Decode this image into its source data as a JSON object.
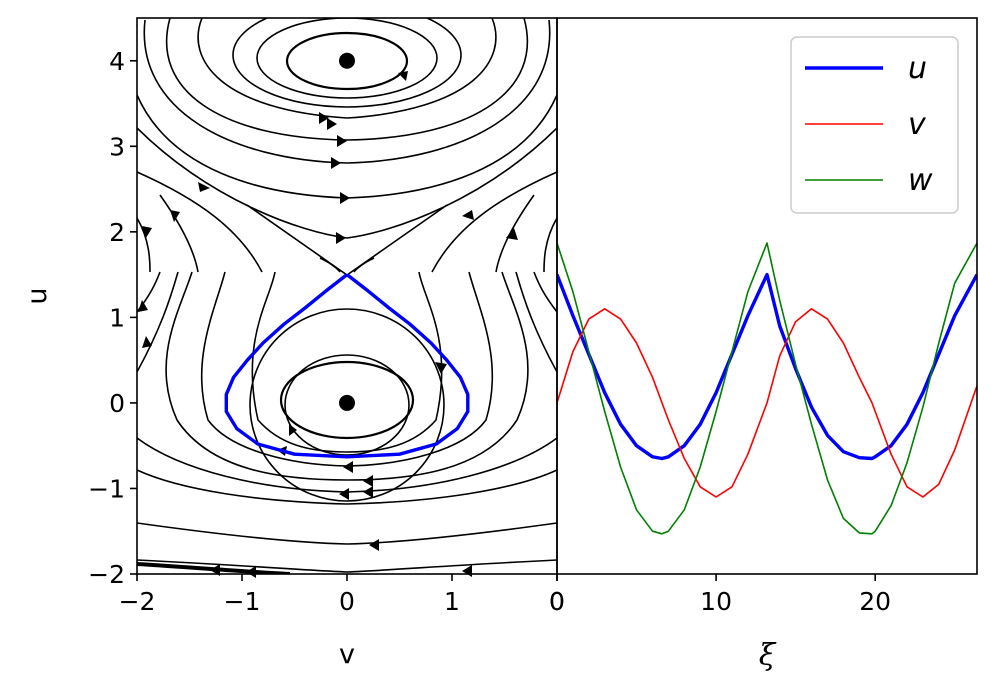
{
  "chart_data": [
    {
      "type": "phase-portrait",
      "xlabel": "v",
      "ylabel": "u",
      "xlim": [
        -2,
        0
      ],
      "ylim": [
        -2,
        4.5
      ],
      "xticks": [
        "−2",
        "−1",
        "0",
        "1",
        "0"
      ],
      "yticks": [
        "−2",
        "−1",
        "0",
        "1",
        "2",
        "3",
        "4"
      ],
      "fixed_points": [
        {
          "v": 0,
          "u": 4
        },
        {
          "v": 0,
          "u": 0
        }
      ],
      "separatrix_vertex": {
        "v": 0,
        "u": 1.5
      },
      "highlight_color": "#0000ff",
      "streamline_color": "#000000",
      "highlighted_orbit": {
        "v": [
          0,
          0.2,
          0.4,
          0.6,
          0.8,
          0.95,
          1.08,
          1.15,
          1.15,
          1.05,
          0.85,
          0.5,
          0,
          -0.5,
          -0.85,
          -1.05,
          -1.15,
          -1.15,
          -1.08,
          -0.95,
          -0.8,
          -0.6,
          -0.4,
          -0.2,
          0
        ],
        "u": [
          1.5,
          1.31,
          1.11,
          0.92,
          0.7,
          0.5,
          0.3,
          0.1,
          -0.1,
          -0.3,
          -0.48,
          -0.6,
          -0.63,
          -0.6,
          -0.48,
          -0.3,
          -0.1,
          0.1,
          0.3,
          0.5,
          0.7,
          0.92,
          1.11,
          1.31,
          1.5
        ]
      }
    },
    {
      "type": "line",
      "xlabel": "ξ",
      "xlim": [
        0,
        26.4
      ],
      "ylim": [
        -2,
        4.5
      ],
      "xticks": [
        "0",
        "10",
        "20"
      ],
      "legend_position": "top-right",
      "series": [
        {
          "name": "u",
          "color": "#0000ff",
          "width": "thick",
          "x": [
            0,
            1,
            2,
            3,
            4,
            5,
            6,
            6.6,
            7,
            8,
            9,
            10,
            11,
            12,
            13.2,
            14,
            15,
            16,
            17,
            18,
            19,
            19.8,
            20,
            21,
            22,
            23,
            24,
            25,
            26.4
          ],
          "y": [
            1.5,
            1.02,
            0.57,
            0.12,
            -0.25,
            -0.5,
            -0.63,
            -0.65,
            -0.63,
            -0.5,
            -0.25,
            0.12,
            0.57,
            1.02,
            1.5,
            0.9,
            0.4,
            -0.05,
            -0.38,
            -0.57,
            -0.64,
            -0.65,
            -0.63,
            -0.5,
            -0.25,
            0.12,
            0.57,
            1.02,
            1.5
          ]
        },
        {
          "name": "v",
          "color": "#ff0000",
          "width": "thin",
          "x": [
            0,
            1,
            2,
            3,
            4,
            5,
            6,
            6.6,
            7,
            8,
            9,
            10,
            11,
            12,
            13.2,
            14,
            15,
            16,
            17,
            18,
            19,
            19.8,
            20,
            21,
            22,
            23,
            24,
            25,
            26.4
          ],
          "y": [
            0,
            0.6,
            0.98,
            1.1,
            0.98,
            0.7,
            0.3,
            0,
            -0.2,
            -0.65,
            -0.98,
            -1.1,
            -0.98,
            -0.6,
            0,
            0.55,
            0.95,
            1.1,
            0.98,
            0.7,
            0.3,
            0,
            -0.1,
            -0.6,
            -0.98,
            -1.1,
            -0.95,
            -0.55,
            0.2
          ]
        },
        {
          "name": "w",
          "color": "#008000",
          "width": "thin",
          "x": [
            0,
            1,
            2,
            3,
            4,
            5,
            6,
            6.6,
            7,
            8,
            9,
            10,
            11,
            12,
            13.2,
            14,
            15,
            16,
            17,
            18,
            19,
            19.8,
            20,
            21,
            22,
            23,
            24,
            25,
            26.4
          ],
          "y": [
            1.87,
            1.3,
            0.6,
            -0.1,
            -0.75,
            -1.25,
            -1.5,
            -1.53,
            -1.5,
            -1.25,
            -0.75,
            -0.1,
            0.6,
            1.3,
            1.87,
            1.2,
            0.45,
            -0.25,
            -0.9,
            -1.35,
            -1.52,
            -1.53,
            -1.5,
            -1.2,
            -0.7,
            -0.05,
            0.7,
            1.4,
            1.87
          ]
        }
      ]
    }
  ]
}
